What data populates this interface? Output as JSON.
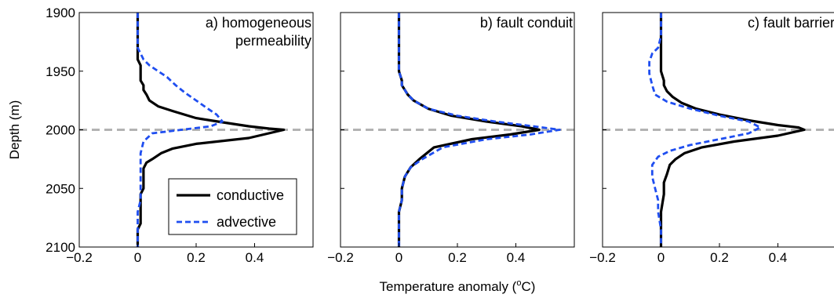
{
  "figure": {
    "ylabel": "Depth (m)",
    "xlabel_main": "Temperature anomaly (",
    "xlabel_sup": "o",
    "xlabel_tail": "C)"
  },
  "legend": {
    "entries": [
      "conductive",
      "advective"
    ]
  },
  "chart_data": [
    {
      "type": "line",
      "title": "a) homogeneous permeability",
      "title_lines": [
        "a) homogeneous",
        "permeability"
      ],
      "xlim": [
        -0.2,
        0.6
      ],
      "ylim": [
        2100,
        1900
      ],
      "xticks": [
        -0.2,
        0,
        0.2,
        0.4
      ],
      "xtick_labels": [
        "−0.2",
        "0",
        "0.2",
        "0.4"
      ],
      "yticks": [
        1900,
        1950,
        2000,
        2050,
        2100
      ],
      "ytick_labels": [
        "1900",
        "1950",
        "2000",
        "2050",
        "2100"
      ],
      "reference_line_depth": 2000,
      "series": [
        {
          "name": "conductive",
          "x": [
            0.0,
            0.0,
            0.0,
            0.0,
            0.01,
            0.01,
            0.01,
            0.02,
            0.02,
            0.03,
            0.04,
            0.07,
            0.12,
            0.2,
            0.3,
            0.38,
            0.45,
            0.5,
            0.38,
            0.2,
            0.12,
            0.08,
            0.05,
            0.03,
            0.02,
            0.02,
            0.02,
            0.01,
            0.01,
            0.01,
            0.01,
            0.0,
            0.0,
            0.0
          ],
          "y": [
            1900,
            1920,
            1930,
            1940,
            1945,
            1950,
            1958,
            1962,
            1966,
            1970,
            1975,
            1980,
            1984,
            1990,
            1994,
            1997,
            1999,
            2000,
            2007,
            2012,
            2016,
            2020,
            2025,
            2028,
            2033,
            2040,
            2050,
            2055,
            2060,
            2070,
            2080,
            2085,
            2090,
            2100
          ]
        },
        {
          "name": "advective",
          "x": [
            0.0,
            0.0,
            0.0,
            0.01,
            0.02,
            0.04,
            0.07,
            0.1,
            0.13,
            0.16,
            0.2,
            0.24,
            0.27,
            0.29,
            0.25,
            0.15,
            0.05,
            0.02,
            0.01,
            0.01,
            0.01,
            0.0,
            0.0,
            0.0,
            0.0
          ],
          "y": [
            1900,
            1920,
            1930,
            1935,
            1940,
            1945,
            1950,
            1955,
            1962,
            1968,
            1975,
            1982,
            1987,
            1993,
            1997,
            2000,
            2003,
            2010,
            2020,
            2040,
            2060,
            2070,
            2080,
            2090,
            2100
          ]
        }
      ]
    },
    {
      "type": "line",
      "title": "b) fault conduit",
      "title_lines": [
        "b) fault conduit"
      ],
      "xlim": [
        -0.2,
        0.6
      ],
      "ylim": [
        2100,
        1900
      ],
      "xticks": [
        -0.2,
        0,
        0.2,
        0.4
      ],
      "xtick_labels": [
        "−0.2",
        "0",
        "0.2",
        "0.4"
      ],
      "yticks": [
        1900,
        1950,
        2000,
        2050,
        2100
      ],
      "ytick_labels": [
        "",
        "",
        "",
        "",
        ""
      ],
      "reference_line_depth": 2000,
      "series": [
        {
          "name": "conductive",
          "x": [
            0.0,
            0.0,
            0.0,
            0.0,
            0.01,
            0.01,
            0.02,
            0.03,
            0.05,
            0.1,
            0.18,
            0.3,
            0.42,
            0.48,
            0.38,
            0.25,
            0.12,
            0.07,
            0.04,
            0.02,
            0.01,
            0.01,
            0.0,
            0.0,
            0.0
          ],
          "y": [
            1900,
            1920,
            1940,
            1950,
            1958,
            1962,
            1966,
            1970,
            1975,
            1982,
            1988,
            1993,
            1997,
            2000,
            2004,
            2008,
            2015,
            2025,
            2032,
            2040,
            2050,
            2060,
            2070,
            2085,
            2100
          ]
        },
        {
          "name": "advective",
          "x": [
            0.0,
            0.0,
            0.0,
            0.0,
            0.01,
            0.01,
            0.02,
            0.03,
            0.05,
            0.1,
            0.2,
            0.33,
            0.46,
            0.55,
            0.45,
            0.3,
            0.15,
            0.08,
            0.04,
            0.02,
            0.01,
            0.01,
            0.0,
            0.0,
            0.0
          ],
          "y": [
            1900,
            1920,
            1940,
            1950,
            1958,
            1962,
            1966,
            1970,
            1975,
            1982,
            1988,
            1993,
            1997,
            2000,
            2004,
            2008,
            2015,
            2025,
            2032,
            2040,
            2050,
            2060,
            2070,
            2085,
            2100
          ]
        }
      ]
    },
    {
      "type": "line",
      "title": "c) fault barrier",
      "title_lines": [
        "c) fault barrier"
      ],
      "xlim": [
        -0.2,
        0.6
      ],
      "ylim": [
        2100,
        1900
      ],
      "xticks": [
        -0.2,
        0,
        0.2,
        0.4
      ],
      "xtick_labels": [
        "−0.2",
        "0",
        "0.2",
        "0.4"
      ],
      "yticks": [
        1900,
        1950,
        2000,
        2050,
        2100
      ],
      "ytick_labels": [
        "",
        "",
        "",
        "",
        ""
      ],
      "reference_line_depth": 2000,
      "series": [
        {
          "name": "conductive",
          "x": [
            0.0,
            0.0,
            0.0,
            0.0,
            0.01,
            0.01,
            0.02,
            0.04,
            0.07,
            0.12,
            0.2,
            0.3,
            0.4,
            0.47,
            0.49,
            0.4,
            0.25,
            0.14,
            0.08,
            0.05,
            0.03,
            0.02,
            0.01,
            0.01,
            0.0,
            0.0,
            0.0
          ],
          "y": [
            1900,
            1920,
            1940,
            1950,
            1958,
            1962,
            1967,
            1972,
            1977,
            1982,
            1987,
            1992,
            1996,
            1998,
            2000,
            2005,
            2010,
            2015,
            2020,
            2025,
            2030,
            2038,
            2045,
            2055,
            2070,
            2085,
            2100
          ]
        },
        {
          "name": "advective",
          "x": [
            0.0,
            0.0,
            -0.01,
            -0.03,
            -0.04,
            -0.04,
            -0.03,
            -0.02,
            0.02,
            0.1,
            0.2,
            0.3,
            0.34,
            0.3,
            0.2,
            0.1,
            0.03,
            -0.01,
            -0.03,
            -0.03,
            -0.02,
            -0.01,
            -0.01,
            0.0,
            0.0
          ],
          "y": [
            1900,
            1920,
            1930,
            1935,
            1942,
            1952,
            1962,
            1970,
            1976,
            1982,
            1988,
            1993,
            1998,
            2003,
            2008,
            2013,
            2018,
            2023,
            2030,
            2040,
            2050,
            2060,
            2070,
            2085,
            2100
          ]
        }
      ]
    }
  ]
}
